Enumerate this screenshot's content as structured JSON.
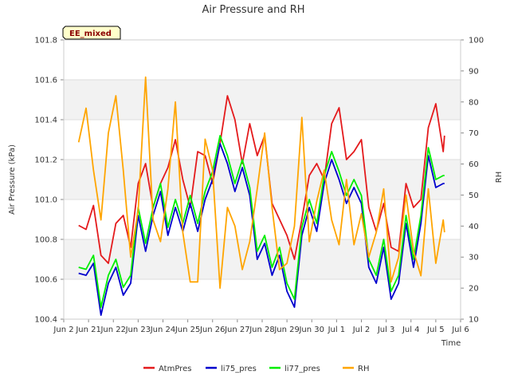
{
  "chart_data": {
    "type": "line",
    "title": "Air Pressure and RH",
    "badge": "EE_mixed",
    "xlabel": "Time",
    "ylabel_left": "Air Pressure (kPa)",
    "ylabel_right": "RH",
    "x_range": [
      "Jun 20",
      "Jul 6"
    ],
    "x_ticks": [
      "Jun 21",
      "Jun 22",
      "Jun 23",
      "Jun 24",
      "Jun 25",
      "Jun 26",
      "Jun 27",
      "Jun 28",
      "Jun 29",
      "Jun 30",
      "Jul 1",
      "Jul 2",
      "Jul 3",
      "Jul 4",
      "Jul 5",
      "Jul 6"
    ],
    "x_tick_first_text": "Jun 2",
    "ylim_left": [
      100.4,
      101.8
    ],
    "yticks_left": [
      "100.4",
      "100.6",
      "100.8",
      "101.0",
      "101.2",
      "101.4",
      "101.6",
      "101.8"
    ],
    "ylim_right": [
      10,
      100
    ],
    "yticks_right": [
      "10",
      "20",
      "30",
      "40",
      "50",
      "60",
      "70",
      "80",
      "90",
      "100"
    ],
    "x_data_days_from_jun20": [
      0.6,
      0.9,
      1.2,
      1.5,
      1.8,
      2.1,
      2.4,
      2.7,
      3.0,
      3.3,
      3.6,
      3.9,
      4.2,
      4.5,
      4.8,
      5.1,
      5.4,
      5.7,
      6.0,
      6.3,
      6.6,
      6.9,
      7.2,
      7.5,
      7.8,
      8.1,
      8.4,
      8.7,
      9.0,
      9.3,
      9.6,
      9.9,
      10.2,
      10.5,
      10.8,
      11.1,
      11.4,
      11.7,
      12.0,
      12.3,
      12.6,
      12.9,
      13.2,
      13.5,
      13.8,
      14.1,
      14.4,
      14.7,
      15.0,
      15.3,
      15.35
    ],
    "series": [
      {
        "name": "AtmPres",
        "color": "#e41a1c",
        "axis": "left",
        "values": [
          100.87,
          100.85,
          100.97,
          100.72,
          100.68,
          100.88,
          100.92,
          100.76,
          101.08,
          101.18,
          100.96,
          101.08,
          101.16,
          101.3,
          101.1,
          100.96,
          101.24,
          101.22,
          101.08,
          101.28,
          101.52,
          101.4,
          101.18,
          101.38,
          101.22,
          101.32,
          100.98,
          100.9,
          100.82,
          100.7,
          100.9,
          101.12,
          101.18,
          101.1,
          101.38,
          101.46,
          101.2,
          101.24,
          101.3,
          100.96,
          100.84,
          100.98,
          100.76,
          100.74,
          101.08,
          100.96,
          101.0,
          101.36,
          101.48,
          101.24,
          101.32
        ]
      },
      {
        "name": "li75_pres",
        "color": "#0000cd",
        "axis": "left",
        "values": [
          100.63,
          100.62,
          100.68,
          100.42,
          100.58,
          100.66,
          100.52,
          100.58,
          100.92,
          100.74,
          100.92,
          101.04,
          100.82,
          100.96,
          100.84,
          100.98,
          100.84,
          101.0,
          101.1,
          101.28,
          101.18,
          101.04,
          101.16,
          101.02,
          100.7,
          100.78,
          100.62,
          100.72,
          100.54,
          100.46,
          100.82,
          100.96,
          100.84,
          101.08,
          101.2,
          101.1,
          100.98,
          101.06,
          100.98,
          100.66,
          100.58,
          100.76,
          100.5,
          100.58,
          100.88,
          100.66,
          100.88,
          101.22,
          101.06,
          101.08,
          101.08
        ]
      },
      {
        "name": "li77_pres",
        "color": "#00ee00",
        "axis": "left",
        "values": [
          100.66,
          100.65,
          100.72,
          100.46,
          100.62,
          100.7,
          100.56,
          100.62,
          100.96,
          100.78,
          100.96,
          101.08,
          100.86,
          101.0,
          100.88,
          101.02,
          100.88,
          101.04,
          101.14,
          101.32,
          101.22,
          101.08,
          101.2,
          101.06,
          100.74,
          100.82,
          100.66,
          100.76,
          100.58,
          100.5,
          100.86,
          101.0,
          100.88,
          101.12,
          101.24,
          101.14,
          101.02,
          101.1,
          101.02,
          100.7,
          100.62,
          100.8,
          100.54,
          100.62,
          100.92,
          100.7,
          100.92,
          101.26,
          101.1,
          101.12,
          101.12
        ]
      },
      {
        "name": "RH",
        "color": "#ffa500",
        "axis": "right",
        "values": [
          67,
          78,
          58,
          42,
          70,
          82,
          58,
          30,
          45,
          88,
          42,
          35,
          52,
          80,
          38,
          22,
          22,
          68,
          58,
          20,
          46,
          40,
          26,
          35,
          52,
          70,
          46,
          26,
          28,
          40,
          75,
          35,
          48,
          58,
          42,
          34,
          55,
          34,
          44,
          30,
          38,
          52,
          22,
          30,
          50,
          32,
          24,
          52,
          28,
          42,
          38
        ]
      }
    ]
  }
}
